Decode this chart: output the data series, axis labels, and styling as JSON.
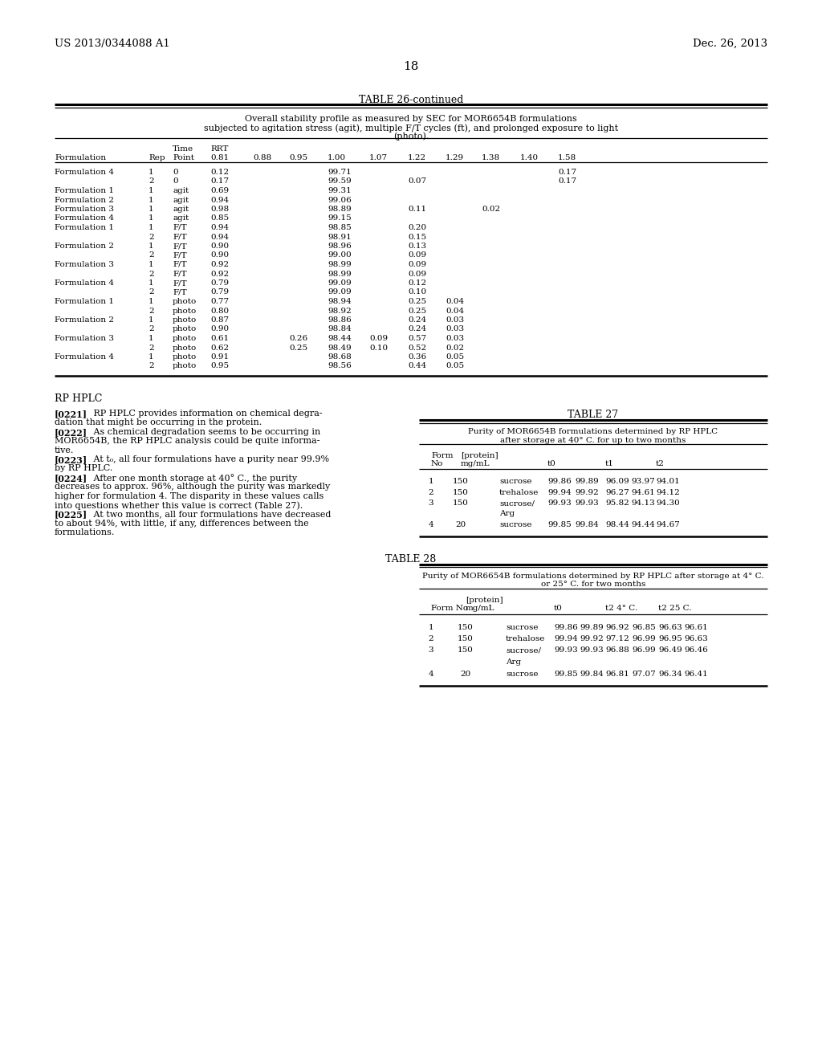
{
  "bg_color": "#ffffff",
  "header_left": "US 2013/0344088 A1",
  "header_right": "Dec. 26, 2013",
  "page_number": "18",
  "table26_title": "TABLE 26-continued",
  "table26_caption_lines": [
    "Overall stability profile as measured by SEC for MOR6654B formulations",
    "subjected to agitation stress (agit), multiple F/T cycles (ft), and prolonged exposure to light",
    "(photo)."
  ],
  "table26_rows": [
    [
      "Formulation 4",
      "1",
      "0",
      "0.12",
      "",
      "99.71",
      "",
      "",
      "",
      "",
      "",
      "0.17"
    ],
    [
      "",
      "2",
      "0",
      "0.17",
      "",
      "99.59",
      "",
      "0.07",
      "",
      "",
      "",
      "0.17"
    ],
    [
      "Formulation 1",
      "1",
      "agit",
      "0.69",
      "",
      "99.31",
      "",
      "",
      "",
      "",
      "",
      ""
    ],
    [
      "Formulation 2",
      "1",
      "agit",
      "0.94",
      "",
      "99.06",
      "",
      "",
      "",
      "",
      "",
      ""
    ],
    [
      "Formulation 3",
      "1",
      "agit",
      "0.98",
      "",
      "98.89",
      "",
      "0.11",
      "",
      "0.02",
      "",
      ""
    ],
    [
      "Formulation 4",
      "1",
      "agit",
      "0.85",
      "",
      "99.15",
      "",
      "",
      "",
      "",
      "",
      ""
    ],
    [
      "Formulation 1",
      "1",
      "F/T",
      "0.94",
      "",
      "98.85",
      "",
      "0.20",
      "",
      "",
      "",
      ""
    ],
    [
      "",
      "2",
      "F/T",
      "0.94",
      "",
      "98.91",
      "",
      "0.15",
      "",
      "",
      "",
      ""
    ],
    [
      "Formulation 2",
      "1",
      "F/T",
      "0.90",
      "",
      "98.96",
      "",
      "0.13",
      "",
      "",
      "",
      ""
    ],
    [
      "",
      "2",
      "F/T",
      "0.90",
      "",
      "99.00",
      "",
      "0.09",
      "",
      "",
      "",
      ""
    ],
    [
      "Formulation 3",
      "1",
      "F/T",
      "0.92",
      "",
      "98.99",
      "",
      "0.09",
      "",
      "",
      "",
      ""
    ],
    [
      "",
      "2",
      "F/T",
      "0.92",
      "",
      "98.99",
      "",
      "0.09",
      "",
      "",
      "",
      ""
    ],
    [
      "Formulation 4",
      "1",
      "F/T",
      "0.79",
      "",
      "99.09",
      "",
      "0.12",
      "",
      "",
      "",
      ""
    ],
    [
      "",
      "2",
      "F/T",
      "0.79",
      "",
      "99.09",
      "",
      "0.10",
      "",
      "",
      "",
      ""
    ],
    [
      "Formulation 1",
      "1",
      "photo",
      "0.77",
      "",
      "98.94",
      "",
      "0.25",
      "0.04",
      "",
      "",
      ""
    ],
    [
      "",
      "2",
      "photo",
      "0.80",
      "",
      "98.92",
      "",
      "0.25",
      "0.04",
      "",
      "",
      ""
    ],
    [
      "Formulation 2",
      "1",
      "photo",
      "0.87",
      "",
      "98.86",
      "",
      "0.24",
      "0.03",
      "",
      "",
      ""
    ],
    [
      "",
      "2",
      "photo",
      "0.90",
      "",
      "98.84",
      "",
      "0.24",
      "0.03",
      "",
      "",
      ""
    ],
    [
      "Formulation 3",
      "1",
      "photo",
      "0.61",
      "0.26",
      "98.44",
      "0.09",
      "0.57",
      "0.03",
      "",
      "",
      ""
    ],
    [
      "",
      "2",
      "photo",
      "0.62",
      "0.25",
      "98.49",
      "0.10",
      "0.52",
      "0.02",
      "",
      "",
      ""
    ],
    [
      "Formulation 4",
      "1",
      "photo",
      "0.91",
      "",
      "98.68",
      "",
      "0.36",
      "0.05",
      "",
      "",
      ""
    ],
    [
      "",
      "2",
      "photo",
      "0.95",
      "",
      "98.56",
      "",
      "0.44",
      "0.05",
      "",
      "",
      ""
    ]
  ],
  "rp_hplc_title": "RP HPLC",
  "rp_hplc_paragraphs": [
    {
      "num": "[0221]",
      "lines": [
        "   RP HPLC provides information on chemical degra-",
        "dation that might be occurring in the protein."
      ]
    },
    {
      "num": "[0222]",
      "lines": [
        "   As chemical degradation seems to be occurring in",
        "MOR6654B, the RP HPLC analysis could be quite informa-",
        "tive."
      ]
    },
    {
      "num": "[0223]",
      "lines": [
        "   At t₀, all four formulations have a purity near 99.9%",
        "by RP HPLC."
      ]
    },
    {
      "num": "[0224]",
      "lines": [
        "   After one month storage at 40° C., the purity",
        "decreases to approx. 96%, although the purity was markedly",
        "higher for formulation 4. The disparity in these values calls",
        "into questions whether this value is correct (Table 27)."
      ]
    },
    {
      "num": "[0225]",
      "lines": [
        "   At two months, all four formulations have decreased",
        "to about 94%, with little, if any, differences between the",
        "formulations."
      ]
    }
  ],
  "table27_title": "TABLE 27",
  "table27_caption1": "Purity of MOR6654B formulations determined by RP HPLC",
  "table27_caption2": "after storage at 40° C. for up to two months",
  "table27_rows": [
    [
      "1",
      "150",
      "sucrose",
      "99.86",
      "99.89",
      "96.09",
      "93.97",
      "94.01"
    ],
    [
      "2",
      "150",
      "trehalose",
      "99.94",
      "99.92",
      "96.27",
      "94.61",
      "94.12"
    ],
    [
      "3",
      "150",
      "sucrose/",
      "99.93",
      "99.93",
      "95.82",
      "94.13",
      "94.30"
    ],
    [
      "",
      "",
      "Arg",
      "",
      "",
      "",
      "",
      ""
    ],
    [
      "4",
      "20",
      "sucrose",
      "99.85",
      "99.84",
      "98.44",
      "94.44",
      "94.67"
    ]
  ],
  "table28_title": "TABLE 28",
  "table28_caption1": "Purity of MOR6654B formulations determined by RP HPLC after storage at 4° C.",
  "table28_caption2": "or 25° C. for two months",
  "table28_rows": [
    [
      "1",
      "150",
      "sucrose",
      "99.86",
      "99.89",
      "96.92",
      "96.85",
      "96.63",
      "96.61"
    ],
    [
      "2",
      "150",
      "trehalose",
      "99.94",
      "99.92",
      "97.12",
      "96.99",
      "96.95",
      "96.63"
    ],
    [
      "3",
      "150",
      "sucrose/",
      "99.93",
      "99.93",
      "96.88",
      "96.99",
      "96.49",
      "96.46"
    ],
    [
      "",
      "",
      "Arg",
      "",
      "",
      "",
      "",
      "",
      ""
    ],
    [
      "4",
      "20",
      "sucrose",
      "99.85",
      "99.84",
      "96.81",
      "97.07",
      "96.34",
      "96.41"
    ]
  ]
}
